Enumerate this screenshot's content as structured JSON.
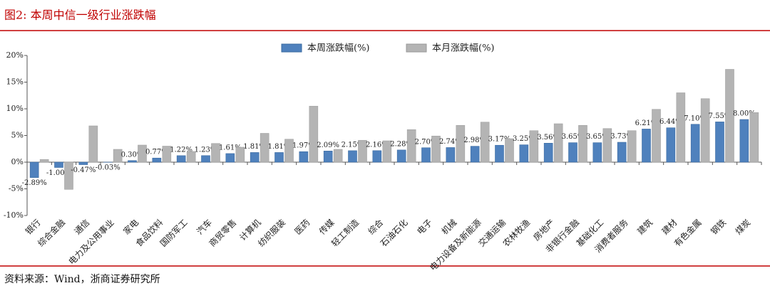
{
  "title": "图2:  本周中信一级行业涨跌幅",
  "source": "资料来源：Wind，浙商证券研究所",
  "chart_data": {
    "type": "bar",
    "grid": false,
    "legend": "top",
    "categories": [
      "银行",
      "综合金融",
      "通信",
      "电力及公用事业",
      "家电",
      "食品饮料",
      "国防军工",
      "汽车",
      "商贸零售",
      "计算机",
      "纺织服装",
      "医药",
      "传媒",
      "轻工制造",
      "综合",
      "石油石化",
      "电子",
      "机械",
      "电力设备及新能源",
      "交通运输",
      "农林牧渔",
      "房地产",
      "非银行金融",
      "基础化工",
      "消费者服务",
      "建筑",
      "建材",
      "有色金属",
      "钢铁",
      "煤炭"
    ],
    "series": [
      {
        "name": "本周涨跌幅(%)",
        "color": "#4f81bd",
        "values": [
          -2.89,
          -1.0,
          -0.47,
          -0.03,
          0.3,
          0.77,
          1.22,
          1.23,
          1.61,
          1.81,
          1.81,
          1.97,
          2.09,
          2.15,
          2.16,
          2.28,
          2.7,
          2.74,
          2.98,
          3.17,
          3.25,
          3.56,
          3.65,
          3.65,
          3.73,
          6.21,
          6.44,
          7.1,
          7.55,
          8.0
        ],
        "value_labels": [
          "-2.89%",
          "-1.00%",
          "-0.47%",
          "-0.03%",
          "0.30%",
          "0.77%",
          "1.22%",
          "1.23%",
          "1.61%",
          "1.81%",
          "1.81%",
          "1.97%",
          "2.09%",
          "2.15%",
          "2.16%",
          "2.28%",
          "2.70%",
          "2.74%",
          "2.98%",
          "3.17%",
          "3.25%",
          "3.56%",
          "3.65%",
          "3.65%",
          "3.73%",
          "6.21%",
          "6.44%",
          "7.10%",
          "7.55%",
          "8.00%"
        ]
      },
      {
        "name": "本月涨跌幅(%)",
        "color": "#b4b4b4",
        "values": [
          0.5,
          -5.1,
          6.8,
          2.4,
          3.2,
          3.0,
          2.0,
          3.5,
          2.8,
          5.4,
          4.3,
          10.5,
          2.4,
          4.1,
          4.0,
          6.1,
          4.9,
          6.9,
          7.5,
          4.4,
          5.9,
          7.2,
          6.9,
          6.3,
          5.9,
          9.9,
          13.0,
          11.9,
          17.4,
          9.3
        ]
      }
    ],
    "ylim": [
      -10,
      20
    ],
    "yticks": [
      {
        "value": -10,
        "label": "-10%"
      },
      {
        "value": -5,
        "label": "-5%"
      },
      {
        "value": 0,
        "label": "0%"
      },
      {
        "value": 5,
        "label": "5%"
      },
      {
        "value": 10,
        "label": "10%"
      },
      {
        "value": 15,
        "label": "15%"
      },
      {
        "value": 20,
        "label": "20%"
      }
    ]
  }
}
